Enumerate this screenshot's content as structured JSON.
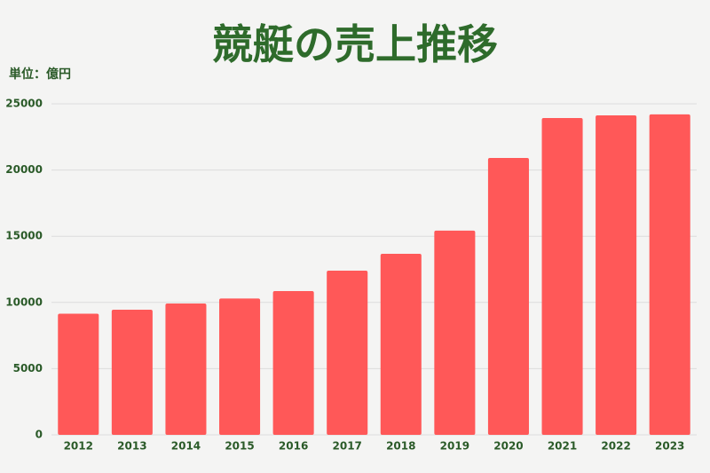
{
  "chart_data": {
    "type": "bar",
    "title": "競艇の売上推移",
    "y_axis_label": "単位：億円",
    "categories": [
      "2012",
      "2013",
      "2014",
      "2015",
      "2016",
      "2017",
      "2018",
      "2019",
      "2020",
      "2021",
      "2022",
      "2023"
    ],
    "values": [
      9150,
      9450,
      9920,
      10300,
      10860,
      12400,
      13670,
      15420,
      20910,
      23930,
      24130,
      24200
    ],
    "color": "#ff5858",
    "ylim": [
      0,
      25000
    ],
    "yticks": [
      0,
      5000,
      10000,
      15000,
      20000,
      25000
    ],
    "grid": true
  }
}
